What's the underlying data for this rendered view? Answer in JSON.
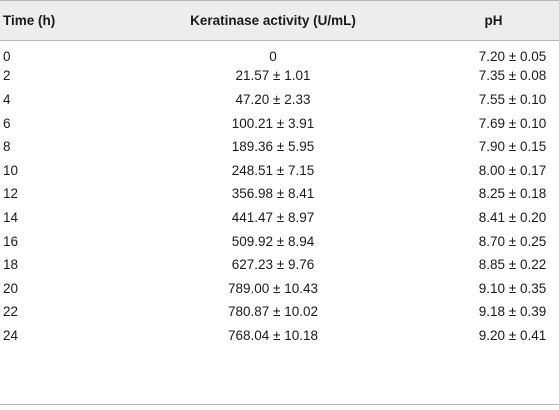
{
  "table": {
    "headers": {
      "time": "Time (h)",
      "keratinase": "Keratinase activity (U/mL)",
      "ph": "pH"
    },
    "rows": [
      {
        "time": "0",
        "keratinase": "0",
        "ph": "7.20 ± 0.05"
      },
      {
        "time": "2",
        "keratinase": "21.57 ± 1.01",
        "ph": "7.35 ± 0.08"
      },
      {
        "time": "4",
        "keratinase": "47.20 ± 2.33",
        "ph": "7.55 ± 0.10"
      },
      {
        "time": "6",
        "keratinase": "100.21 ± 3.91",
        "ph": "7.69 ± 0.10"
      },
      {
        "time": "8",
        "keratinase": "189.36 ± 5.95",
        "ph": "7.90 ± 0.15"
      },
      {
        "time": "10",
        "keratinase": "248.51 ± 7.15",
        "ph": "8.00 ± 0.17"
      },
      {
        "time": "12",
        "keratinase": "356.98 ± 8.41",
        "ph": "8.25 ± 0.18"
      },
      {
        "time": "14",
        "keratinase": "441.47 ± 8.97",
        "ph": "8.41 ± 0.20"
      },
      {
        "time": "16",
        "keratinase": "509.92 ± 8.94",
        "ph": "8.70 ± 0.25"
      },
      {
        "time": "18",
        "keratinase": "627.23 ± 9.76",
        "ph": "8.85 ± 0.22"
      },
      {
        "time": "20",
        "keratinase": "789.00 ± 10.43",
        "ph": "9.10 ± 0.35"
      },
      {
        "time": "22",
        "keratinase": "780.87 ± 10.02",
        "ph": "9.18 ± 0.39"
      },
      {
        "time": "24",
        "keratinase": "768.04 ± 10.18",
        "ph": "9.20 ± 0.41"
      }
    ]
  }
}
